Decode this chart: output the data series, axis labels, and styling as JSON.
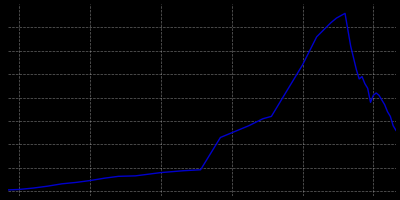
{
  "years": [
    1871,
    1875,
    1880,
    1885,
    1890,
    1895,
    1900,
    1905,
    1910,
    1916,
    1925,
    1933,
    1939,
    1946,
    1950,
    1956,
    1961,
    1964,
    1970,
    1975,
    1980,
    1985,
    1987,
    1990,
    1992,
    1994,
    1995,
    1996,
    1997,
    1998,
    1999,
    2000,
    2001,
    2002,
    2003,
    2004,
    2005,
    2006,
    2007,
    2008
  ],
  "population": [
    530,
    540,
    570,
    610,
    660,
    690,
    730,
    780,
    820,
    830,
    900,
    940,
    960,
    1650,
    1750,
    1900,
    2050,
    2100,
    2700,
    3200,
    3800,
    4100,
    4200,
    4300,
    3600,
    3100,
    2900,
    2950,
    2800,
    2700,
    2400,
    2550,
    2600,
    2550,
    2450,
    2350,
    2200,
    2100,
    1900,
    1800
  ],
  "line_color": "#0000cc",
  "bg_color": "#000000",
  "grid_color": "#aaaaaa",
  "xlim": [
    1871,
    2008
  ],
  "ylim": [
    400,
    4500
  ],
  "xtick_years": [
    1875,
    1900,
    1925,
    1950,
    1975,
    2000
  ],
  "ytick_values": [
    500,
    1000,
    1500,
    2000,
    2500,
    3000,
    3500,
    4000
  ]
}
